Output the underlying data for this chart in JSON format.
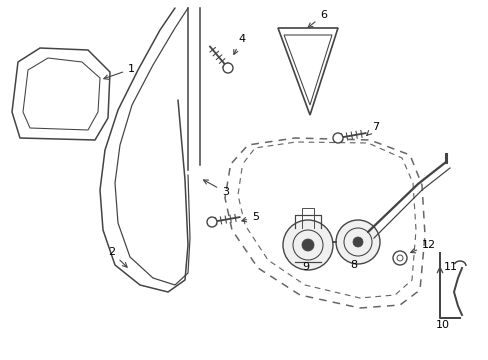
{
  "bg_color": "#ffffff",
  "line_color": "#444444",
  "dash_color": "#666666",
  "label_color": "#000000",
  "lw": 1.1
}
